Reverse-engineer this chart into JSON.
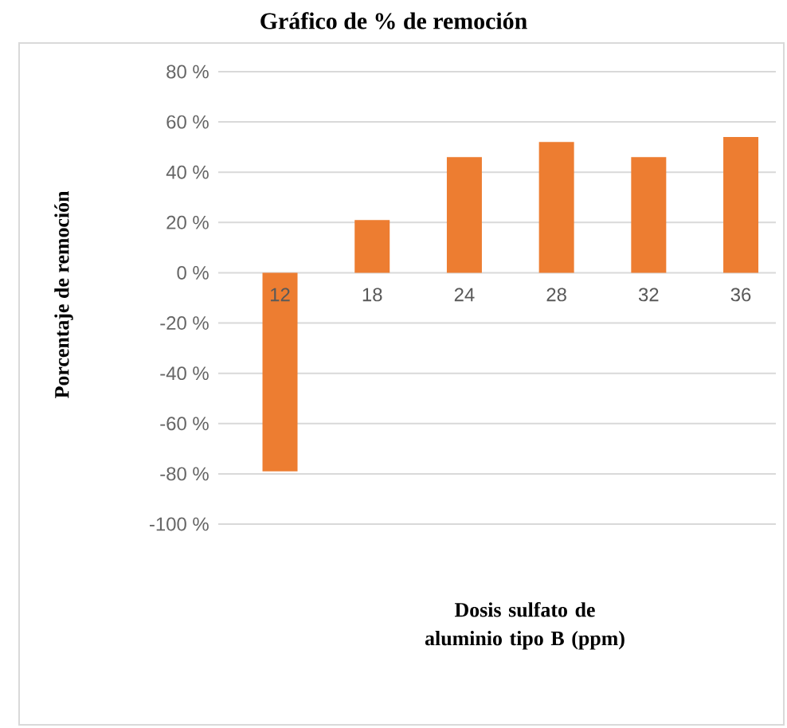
{
  "chart_data": {
    "type": "bar",
    "title": "Gráfico de % de remoción",
    "ylabel": "Porcentaje de remoción",
    "xlabel": "Dosis sulfato de aluminio tipo B (ppm)",
    "categories": [
      "12",
      "18",
      "24",
      "28",
      "32",
      "36"
    ],
    "values": [
      -79,
      21,
      46,
      52,
      46,
      54
    ],
    "color": "#ed7d31",
    "ylim": [
      -100,
      80
    ],
    "yticks": [
      {
        "value": -100,
        "label": "-100 %"
      },
      {
        "value": -80,
        "label": "-80 %"
      },
      {
        "value": -60,
        "label": "-60 %"
      },
      {
        "value": -40,
        "label": "-40 %"
      },
      {
        "value": -20,
        "label": "-20 %"
      },
      {
        "value": 0,
        "label": "0 %"
      },
      {
        "value": 20,
        "label": "20 %"
      },
      {
        "value": 40,
        "label": "40 %"
      },
      {
        "value": 60,
        "label": "60 %"
      },
      {
        "value": 80,
        "label": "80 %"
      }
    ],
    "grid": "y"
  }
}
